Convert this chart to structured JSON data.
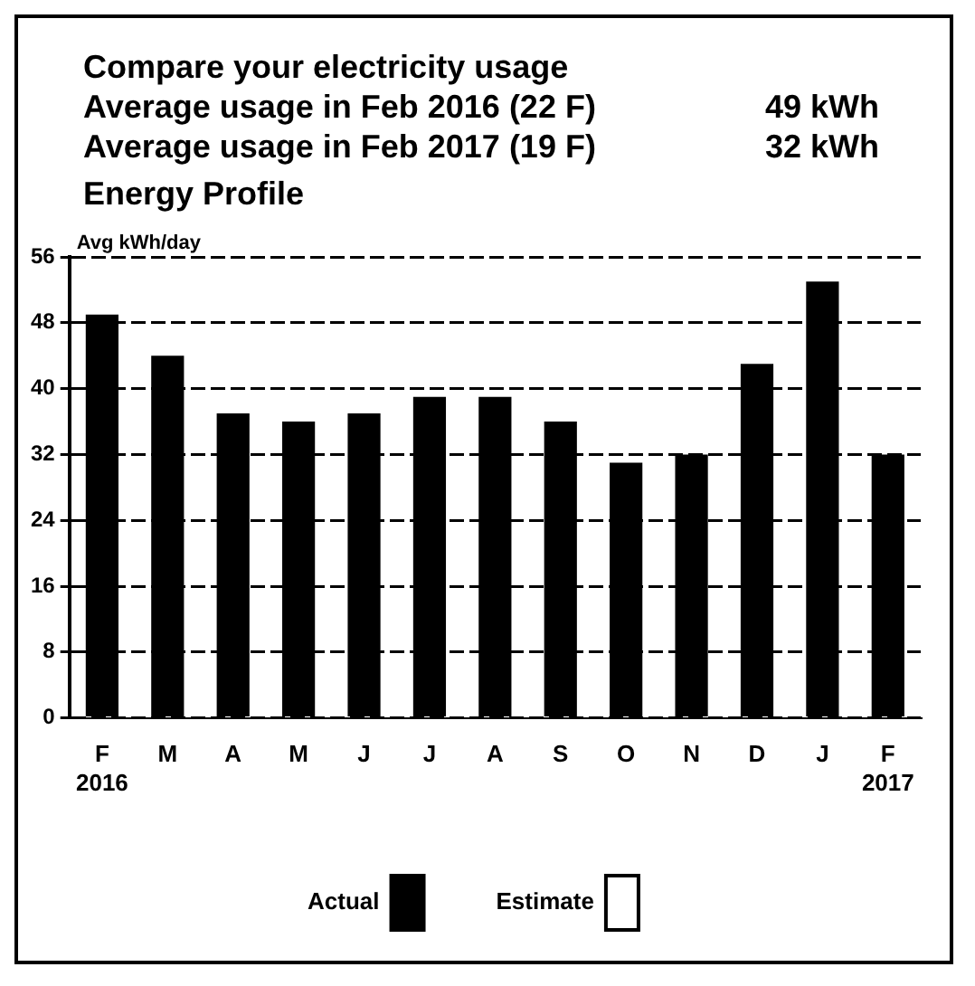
{
  "chart_data": {
    "type": "bar",
    "title": "Compare your electricity usage",
    "subtitle": "Energy Profile",
    "annotations": [
      "Average usage in Feb 2016 (22 F)",
      "49 kWh",
      "Average usage in Feb 2017 (19 F)",
      "32 kWh"
    ],
    "ylabel": "Avg kWh/day",
    "categories": [
      "F\n2016",
      "M",
      "A",
      "M",
      "J",
      "J",
      "A",
      "S",
      "O",
      "N",
      "D",
      "J",
      "F\n2017"
    ],
    "series": [
      {
        "name": "Actual",
        "color": "#000000",
        "values": [
          49,
          44,
          37,
          36,
          37,
          39,
          39,
          36,
          31,
          32,
          43,
          53,
          32
        ]
      },
      {
        "name": "Estimate",
        "color": "#ffffff",
        "values": [
          null,
          null,
          null,
          null,
          null,
          null,
          null,
          null,
          null,
          null,
          null,
          null,
          null
        ]
      }
    ],
    "ylim": [
      0,
      56
    ],
    "yticks": [
      0,
      8,
      16,
      24,
      32,
      40,
      48,
      56
    ],
    "grid": "y",
    "legend": "bottom"
  }
}
